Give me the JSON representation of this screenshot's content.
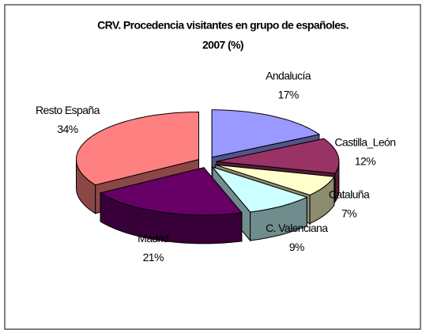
{
  "chart_data": {
    "type": "pie3d",
    "title": [
      "CRV. Procedencia visitantes en grupo de españoles.",
      "2007 (%)"
    ],
    "categories": [
      "Andalucía",
      "Castilla_León",
      "Cataluña",
      "C. Valenciana",
      "Madrid",
      "Resto España"
    ],
    "values": [
      17,
      12,
      7,
      9,
      21,
      34
    ],
    "value_labels": [
      "17%",
      "12%",
      "7%",
      "9%",
      "21%",
      "34%"
    ],
    "colors": [
      "#9999ff",
      "#993366",
      "#ffffcc",
      "#ccffff",
      "#660066",
      "#ff8080"
    ]
  }
}
